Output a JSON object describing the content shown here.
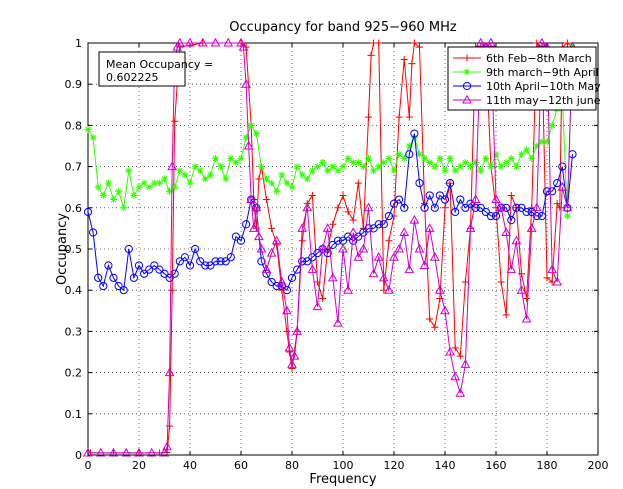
{
  "chart_data": {
    "type": "line",
    "title": "Occupancy for band 925−960 MHz",
    "xlabel": "Frequency",
    "ylabel": "Occupancy",
    "xlim": [
      0,
      200
    ],
    "ylim": [
      0,
      1
    ],
    "xticks": [
      "0",
      "20",
      "40",
      "60",
      "80",
      "100",
      "120",
      "140",
      "160",
      "180",
      "200"
    ],
    "yticks": [
      "0",
      "0.1",
      "0.2",
      "0.3",
      "0.4",
      "0.5",
      "0.6",
      "0.7",
      "0.8",
      "0.9",
      "1"
    ],
    "grid": true,
    "legend_position": "top-right",
    "annotation": {
      "line1": "Mean Occupancy =",
      "line2": "0.602225"
    },
    "series": [
      {
        "name": "6th Feb−8th March",
        "color": "#ff0000",
        "marker": "plus",
        "x": [
          1,
          10,
          20,
          28,
          31,
          32,
          33,
          34,
          36,
          45,
          60,
          62,
          64,
          65,
          66,
          67,
          68,
          70,
          72,
          74,
          76,
          78,
          79,
          80,
          82,
          84,
          86,
          88,
          90,
          92,
          94,
          96,
          98,
          100,
          102,
          104,
          106,
          108,
          110,
          111,
          112,
          114,
          116,
          118,
          120,
          122,
          124,
          126,
          127,
          128,
          130,
          132,
          134,
          136,
          138,
          140,
          142,
          144,
          146,
          148,
          150,
          152,
          154,
          156,
          158,
          160,
          162,
          164,
          166,
          168,
          170,
          172,
          174,
          176,
          178,
          180,
          182,
          184,
          185,
          186,
          188,
          190
        ],
        "y": [
          0.005,
          0.005,
          0.005,
          0.005,
          0.006,
          0.07,
          0.4,
          0.81,
          0.99,
          1.0,
          1.0,
          0.99,
          0.8,
          0.62,
          0.55,
          0.67,
          0.7,
          0.62,
          0.55,
          0.51,
          0.4,
          0.3,
          0.25,
          0.21,
          0.3,
          0.52,
          0.61,
          0.63,
          0.42,
          0.38,
          0.5,
          0.56,
          0.6,
          0.63,
          0.59,
          0.57,
          0.66,
          0.55,
          0.82,
          0.97,
          1.0,
          1.0,
          0.4,
          0.52,
          0.58,
          0.82,
          0.96,
          0.82,
          0.95,
          1.0,
          0.99,
          0.61,
          0.33,
          0.31,
          0.38,
          0.6,
          0.66,
          0.26,
          0.24,
          0.42,
          0.55,
          0.99,
          0.98,
          0.99,
          0.7,
          0.6,
          0.42,
          0.34,
          0.63,
          0.6,
          0.44,
          0.38,
          0.6,
          1.0,
          0.99,
          0.43,
          0.42,
          0.61,
          0.6,
          0.99,
          1.0,
          0.99
        ]
      },
      {
        "name": "9th march−9th April",
        "color": "#33ff00",
        "marker": "star",
        "x": [
          0,
          2,
          4,
          6,
          8,
          10,
          12,
          14,
          16,
          18,
          20,
          22,
          24,
          26,
          28,
          30,
          32,
          34,
          36,
          38,
          40,
          42,
          44,
          46,
          48,
          50,
          52,
          54,
          56,
          58,
          60,
          62,
          64,
          66,
          68,
          70,
          72,
          74,
          76,
          78,
          80,
          82,
          84,
          86,
          88,
          90,
          92,
          94,
          96,
          98,
          100,
          102,
          104,
          106,
          108,
          110,
          112,
          114,
          116,
          118,
          120,
          122,
          124,
          126,
          128,
          130,
          132,
          134,
          136,
          138,
          140,
          142,
          144,
          146,
          148,
          150,
          152,
          154,
          156,
          158,
          160,
          162,
          164,
          166,
          168,
          170,
          172,
          174,
          176,
          178,
          180,
          182,
          184,
          186,
          188,
          190
        ],
        "y": [
          0.79,
          0.77,
          0.65,
          0.63,
          0.66,
          0.62,
          0.64,
          0.6,
          0.69,
          0.63,
          0.65,
          0.66,
          0.65,
          0.66,
          0.66,
          0.67,
          0.64,
          0.65,
          0.69,
          0.68,
          0.66,
          0.7,
          0.69,
          0.67,
          0.68,
          0.72,
          0.7,
          0.67,
          0.72,
          0.71,
          0.72,
          0.77,
          0.8,
          0.78,
          0.7,
          0.67,
          0.66,
          0.64,
          0.68,
          0.66,
          0.65,
          0.7,
          0.68,
          0.67,
          0.69,
          0.7,
          0.71,
          0.69,
          0.7,
          0.69,
          0.7,
          0.72,
          0.71,
          0.71,
          0.7,
          0.72,
          0.69,
          0.7,
          0.71,
          0.72,
          0.69,
          0.73,
          0.72,
          0.75,
          0.77,
          0.73,
          0.72,
          0.71,
          0.7,
          0.72,
          0.69,
          0.72,
          0.69,
          0.7,
          0.71,
          0.7,
          0.71,
          0.69,
          0.72,
          0.7,
          0.73,
          0.7,
          0.71,
          0.72,
          0.7,
          0.73,
          0.74,
          0.72,
          0.75,
          0.76,
          0.76,
          0.8,
          0.84,
          0.87,
          0.58,
          0.99
        ]
      },
      {
        "name": "10th April−10th May",
        "color": "#0000ff",
        "marker": "circle",
        "x": [
          0,
          2,
          4,
          6,
          8,
          10,
          12,
          14,
          16,
          18,
          20,
          22,
          24,
          26,
          28,
          30,
          32,
          34,
          36,
          38,
          40,
          42,
          44,
          46,
          48,
          50,
          52,
          54,
          56,
          58,
          60,
          62,
          64,
          66,
          68,
          70,
          72,
          74,
          76,
          78,
          80,
          82,
          84,
          86,
          88,
          90,
          92,
          94,
          96,
          98,
          100,
          102,
          104,
          106,
          108,
          110,
          112,
          114,
          116,
          118,
          120,
          122,
          124,
          126,
          128,
          130,
          132,
          134,
          136,
          138,
          140,
          142,
          144,
          146,
          148,
          150,
          152,
          154,
          156,
          158,
          160,
          162,
          164,
          166,
          168,
          170,
          172,
          174,
          176,
          178,
          180,
          182,
          184,
          186,
          188,
          190
        ],
        "y": [
          0.59,
          0.54,
          0.43,
          0.41,
          0.46,
          0.43,
          0.41,
          0.4,
          0.5,
          0.43,
          0.46,
          0.44,
          0.45,
          0.46,
          0.45,
          0.44,
          0.43,
          0.44,
          0.47,
          0.48,
          0.46,
          0.5,
          0.47,
          0.46,
          0.46,
          0.47,
          0.47,
          0.47,
          0.48,
          0.53,
          0.52,
          0.56,
          0.62,
          0.6,
          0.47,
          0.44,
          0.42,
          0.41,
          0.41,
          0.4,
          0.43,
          0.45,
          0.47,
          0.47,
          0.48,
          0.49,
          0.5,
          0.49,
          0.51,
          0.52,
          0.52,
          0.53,
          0.52,
          0.53,
          0.54,
          0.55,
          0.55,
          0.56,
          0.56,
          0.58,
          0.61,
          0.62,
          0.6,
          0.73,
          0.78,
          0.66,
          0.6,
          0.63,
          0.6,
          0.63,
          0.62,
          0.66,
          0.59,
          0.62,
          0.6,
          0.61,
          0.6,
          0.6,
          0.59,
          0.58,
          0.58,
          0.6,
          0.6,
          0.57,
          0.6,
          0.6,
          0.59,
          0.59,
          0.58,
          0.58,
          0.64,
          0.64,
          0.66,
          0.7,
          0.6,
          0.73
        ]
      },
      {
        "name": "11th may−12th june",
        "color": "#cc00cc",
        "marker": "triangle",
        "x": [
          0,
          5,
          10,
          15,
          20,
          25,
          30,
          31,
          32,
          33,
          34,
          35,
          36,
          40,
          45,
          50,
          55,
          60,
          61,
          62,
          63,
          64,
          65,
          66,
          67,
          68,
          70,
          72,
          74,
          76,
          78,
          79,
          80,
          81,
          82,
          84,
          86,
          88,
          90,
          92,
          94,
          96,
          98,
          100,
          102,
          104,
          106,
          108,
          110,
          112,
          114,
          116,
          118,
          120,
          122,
          124,
          126,
          128,
          130,
          132,
          134,
          136,
          138,
          140,
          142,
          144,
          146,
          148,
          150,
          152,
          154,
          156,
          158,
          160,
          162,
          164,
          166,
          168,
          170,
          172,
          174,
          176,
          178,
          180,
          182,
          184,
          186,
          188,
          190
        ],
        "y": [
          0.005,
          0.005,
          0.005,
          0.005,
          0.005,
          0.005,
          0.005,
          0.02,
          0.2,
          0.7,
          0.96,
          0.99,
          1.0,
          1.0,
          1.0,
          1.0,
          1.0,
          1.0,
          0.99,
          0.9,
          0.75,
          0.62,
          0.55,
          0.6,
          0.53,
          0.5,
          0.45,
          0.49,
          0.52,
          0.42,
          0.35,
          0.26,
          0.22,
          0.24,
          0.3,
          0.55,
          0.6,
          0.45,
          0.36,
          0.5,
          0.55,
          0.43,
          0.32,
          0.5,
          0.4,
          0.54,
          0.48,
          0.5,
          0.6,
          0.44,
          0.48,
          0.43,
          0.4,
          0.48,
          0.5,
          0.54,
          0.45,
          0.57,
          0.5,
          0.46,
          0.55,
          0.48,
          0.4,
          0.35,
          0.25,
          0.19,
          0.15,
          0.22,
          0.55,
          0.62,
          1.0,
          0.99,
          1.0,
          0.62,
          0.6,
          0.54,
          0.45,
          0.52,
          0.4,
          0.33,
          0.55,
          0.6,
          1.0,
          0.99,
          0.45,
          0.42,
          0.65,
          0.6,
          0.99
        ]
      }
    ]
  }
}
